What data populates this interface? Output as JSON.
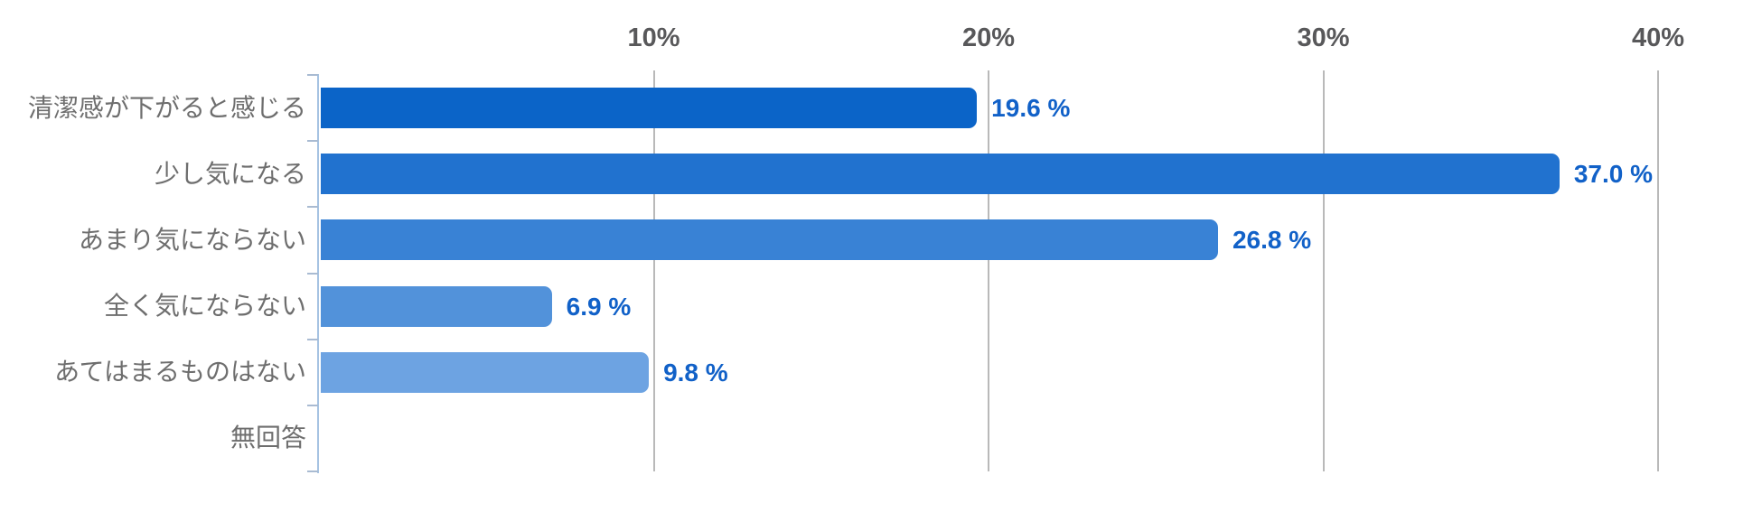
{
  "chart_data": {
    "type": "bar",
    "orientation": "horizontal",
    "title": "",
    "legend": false,
    "grid": true,
    "categories": [
      "清潔感が下がると感じる",
      "少し気になる",
      "あまり気にならない",
      "全く気にならない",
      "あてはまるものはない",
      "無回答"
    ],
    "values": [
      19.6,
      37.0,
      26.8,
      6.9,
      9.8,
      0
    ],
    "value_labels": [
      "19.6 %",
      "37.0 %",
      "26.8 %",
      "6.9 %",
      "9.8 %",
      ""
    ],
    "x_axis": {
      "min": 0,
      "max": 40,
      "ticks": [
        {
          "label": "10%",
          "value": 10
        },
        {
          "label": "20%",
          "value": 20
        },
        {
          "label": "30%",
          "value": 30
        },
        {
          "label": "40%",
          "value": 40
        }
      ]
    },
    "style": {
      "bar_colors": [
        "#0b64c8",
        "#2172cf",
        "#3982d5",
        "#5292da",
        "#6da3e2",
        "#6da3e2"
      ],
      "value_label_color": "#1161c8",
      "category_label_color": "#6e6e6e",
      "axis_tick_label_color": "#58585a",
      "gridline_color": "#b9b9b9",
      "axis_line_color": "#a6c3e2"
    }
  }
}
